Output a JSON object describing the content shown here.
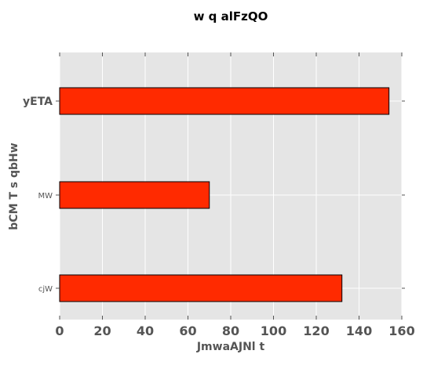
{
  "chart_data": {
    "type": "bar",
    "orientation": "horizontal",
    "title": "w q alFzQO",
    "xlabel": "JmwaAJNl  t",
    "ylabel": "bCM T s qbHw",
    "categories": [
      "yETA",
      "MW",
      "cjW"
    ],
    "values": [
      154,
      70,
      132
    ],
    "xlim": [
      0,
      160
    ],
    "xticks": [
      0,
      20,
      40,
      60,
      80,
      100,
      120,
      140,
      160
    ],
    "grid": true,
    "legend": "none",
    "colors": {
      "bar_fill": "#ff2a00",
      "bar_edge": "#000000",
      "plot_background": "#e5e5e5",
      "grid": "#ffffff"
    }
  }
}
